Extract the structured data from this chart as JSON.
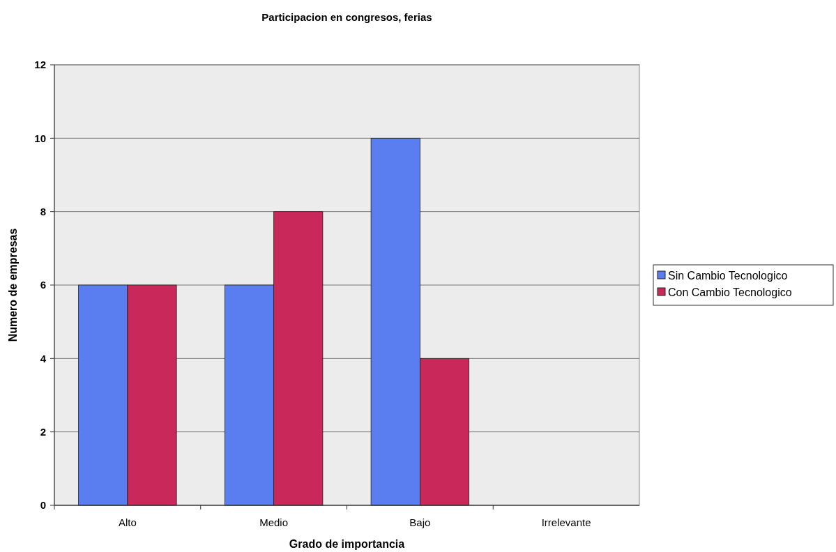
{
  "chart_data": {
    "type": "bar",
    "title": "Participacion en congresos, ferias",
    "xlabel": "Grado de importancia",
    "ylabel": "Numero de empresas",
    "categories": [
      "Alto",
      "Medio",
      "Bajo",
      "Irrelevante"
    ],
    "series": [
      {
        "name": "Sin Cambio Tecnologico",
        "color": "#5a7ef0",
        "values": [
          6,
          6,
          10,
          0
        ]
      },
      {
        "name": "Con Cambio Tecnologico",
        "color": "#c8285a",
        "values": [
          6,
          8,
          4,
          0
        ]
      }
    ],
    "ylim": [
      0,
      12
    ],
    "yticks": [
      0,
      2,
      4,
      6,
      8,
      10,
      12
    ],
    "grid": "y",
    "legend": "right"
  }
}
